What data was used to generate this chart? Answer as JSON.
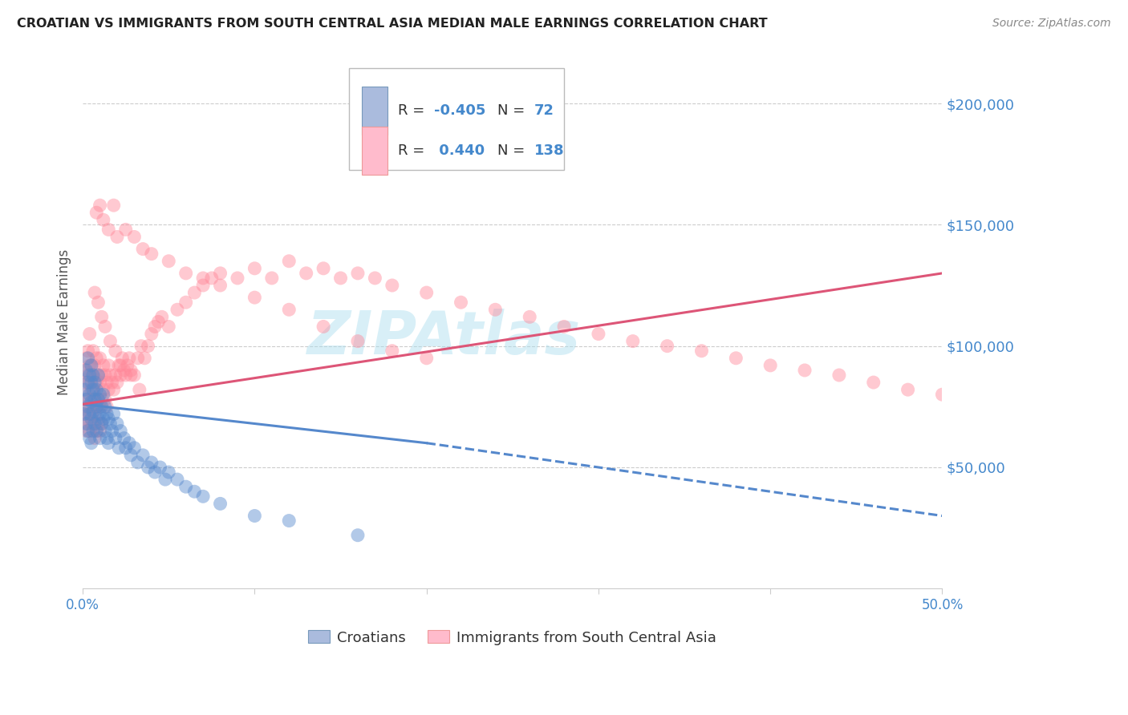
{
  "title": "CROATIAN VS IMMIGRANTS FROM SOUTH CENTRAL ASIA MEDIAN MALE EARNINGS CORRELATION CHART",
  "source": "Source: ZipAtlas.com",
  "ylabel": "Median Male Earnings",
  "background_color": "#ffffff",
  "ylim": [
    0,
    220000
  ],
  "xlim": [
    0.0,
    0.5
  ],
  "yticks": [
    50000,
    100000,
    150000,
    200000
  ],
  "ytick_labels": [
    "$50,000",
    "$100,000",
    "$150,000",
    "$200,000"
  ],
  "xtick_labels_show": [
    "0.0%",
    "50.0%"
  ],
  "grid_color": "#cccccc",
  "blue_color": "#5588cc",
  "pink_color": "#ff8899",
  "title_color": "#222222",
  "axis_label_color": "#555555",
  "tick_label_color": "#4488cc",
  "blue_line_solid": {
    "x0": 0.0,
    "x1": 0.2,
    "y0": 76000,
    "y1": 60000
  },
  "blue_line_dash": {
    "x0": 0.2,
    "x1": 0.5,
    "y0": 60000,
    "y1": 30000
  },
  "pink_line": {
    "x0": 0.0,
    "x1": 0.5,
    "y0": 76000,
    "y1": 130000
  },
  "blue_scatter_x": [
    0.001,
    0.001,
    0.002,
    0.002,
    0.002,
    0.003,
    0.003,
    0.003,
    0.003,
    0.004,
    0.004,
    0.004,
    0.004,
    0.005,
    0.005,
    0.005,
    0.005,
    0.005,
    0.006,
    0.006,
    0.006,
    0.006,
    0.007,
    0.007,
    0.007,
    0.008,
    0.008,
    0.008,
    0.009,
    0.009,
    0.009,
    0.01,
    0.01,
    0.01,
    0.011,
    0.011,
    0.012,
    0.012,
    0.013,
    0.013,
    0.014,
    0.014,
    0.015,
    0.015,
    0.016,
    0.017,
    0.018,
    0.019,
    0.02,
    0.021,
    0.022,
    0.024,
    0.025,
    0.027,
    0.028,
    0.03,
    0.032,
    0.035,
    0.038,
    0.04,
    0.042,
    0.045,
    0.048,
    0.05,
    0.055,
    0.06,
    0.065,
    0.07,
    0.08,
    0.1,
    0.12,
    0.16
  ],
  "blue_scatter_y": [
    82000,
    72000,
    90000,
    78000,
    68000,
    85000,
    75000,
    65000,
    95000,
    80000,
    72000,
    88000,
    62000,
    85000,
    77000,
    70000,
    92000,
    60000,
    82000,
    73000,
    65000,
    88000,
    78000,
    68000,
    85000,
    75000,
    82000,
    65000,
    78000,
    70000,
    88000,
    80000,
    72000,
    62000,
    75000,
    68000,
    80000,
    70000,
    75000,
    65000,
    72000,
    62000,
    70000,
    60000,
    68000,
    65000,
    72000,
    62000,
    68000,
    58000,
    65000,
    62000,
    58000,
    60000,
    55000,
    58000,
    52000,
    55000,
    50000,
    52000,
    48000,
    50000,
    45000,
    48000,
    45000,
    42000,
    40000,
    38000,
    35000,
    30000,
    28000,
    22000
  ],
  "pink_scatter_x": [
    0.001,
    0.001,
    0.001,
    0.002,
    0.002,
    0.002,
    0.002,
    0.003,
    0.003,
    0.003,
    0.003,
    0.003,
    0.004,
    0.004,
    0.004,
    0.004,
    0.004,
    0.005,
    0.005,
    0.005,
    0.005,
    0.005,
    0.006,
    0.006,
    0.006,
    0.006,
    0.007,
    0.007,
    0.007,
    0.007,
    0.008,
    0.008,
    0.008,
    0.008,
    0.009,
    0.009,
    0.009,
    0.01,
    0.01,
    0.01,
    0.01,
    0.011,
    0.011,
    0.011,
    0.012,
    0.012,
    0.013,
    0.013,
    0.014,
    0.014,
    0.015,
    0.015,
    0.016,
    0.017,
    0.018,
    0.019,
    0.02,
    0.021,
    0.022,
    0.023,
    0.024,
    0.025,
    0.026,
    0.027,
    0.028,
    0.03,
    0.032,
    0.034,
    0.036,
    0.038,
    0.04,
    0.042,
    0.044,
    0.046,
    0.05,
    0.055,
    0.06,
    0.065,
    0.07,
    0.075,
    0.08,
    0.09,
    0.1,
    0.11,
    0.12,
    0.13,
    0.14,
    0.15,
    0.16,
    0.17,
    0.18,
    0.2,
    0.22,
    0.24,
    0.26,
    0.28,
    0.3,
    0.32,
    0.34,
    0.36,
    0.38,
    0.4,
    0.42,
    0.44,
    0.46,
    0.48,
    0.5,
    0.008,
    0.01,
    0.012,
    0.015,
    0.018,
    0.02,
    0.025,
    0.03,
    0.035,
    0.04,
    0.05,
    0.06,
    0.07,
    0.08,
    0.1,
    0.12,
    0.14,
    0.16,
    0.18,
    0.2,
    0.007,
    0.009,
    0.011,
    0.013,
    0.016,
    0.019,
    0.022,
    0.028,
    0.033
  ],
  "pink_scatter_y": [
    80000,
    70000,
    90000,
    85000,
    75000,
    95000,
    65000,
    88000,
    78000,
    68000,
    98000,
    72000,
    85000,
    75000,
    92000,
    65000,
    105000,
    82000,
    72000,
    92000,
    68000,
    88000,
    78000,
    88000,
    68000,
    98000,
    82000,
    72000,
    92000,
    62000,
    85000,
    75000,
    95000,
    65000,
    88000,
    78000,
    68000,
    85000,
    75000,
    95000,
    65000,
    88000,
    78000,
    68000,
    92000,
    82000,
    88000,
    78000,
    85000,
    75000,
    92000,
    82000,
    88000,
    85000,
    82000,
    88000,
    85000,
    92000,
    88000,
    95000,
    90000,
    88000,
    92000,
    95000,
    90000,
    88000,
    95000,
    100000,
    95000,
    100000,
    105000,
    108000,
    110000,
    112000,
    108000,
    115000,
    118000,
    122000,
    125000,
    128000,
    130000,
    128000,
    132000,
    128000,
    135000,
    130000,
    132000,
    128000,
    130000,
    128000,
    125000,
    122000,
    118000,
    115000,
    112000,
    108000,
    105000,
    102000,
    100000,
    98000,
    95000,
    92000,
    90000,
    88000,
    85000,
    82000,
    80000,
    155000,
    158000,
    152000,
    148000,
    158000,
    145000,
    148000,
    145000,
    140000,
    138000,
    135000,
    130000,
    128000,
    125000,
    120000,
    115000,
    108000,
    102000,
    98000,
    95000,
    122000,
    118000,
    112000,
    108000,
    102000,
    98000,
    92000,
    88000,
    82000
  ]
}
